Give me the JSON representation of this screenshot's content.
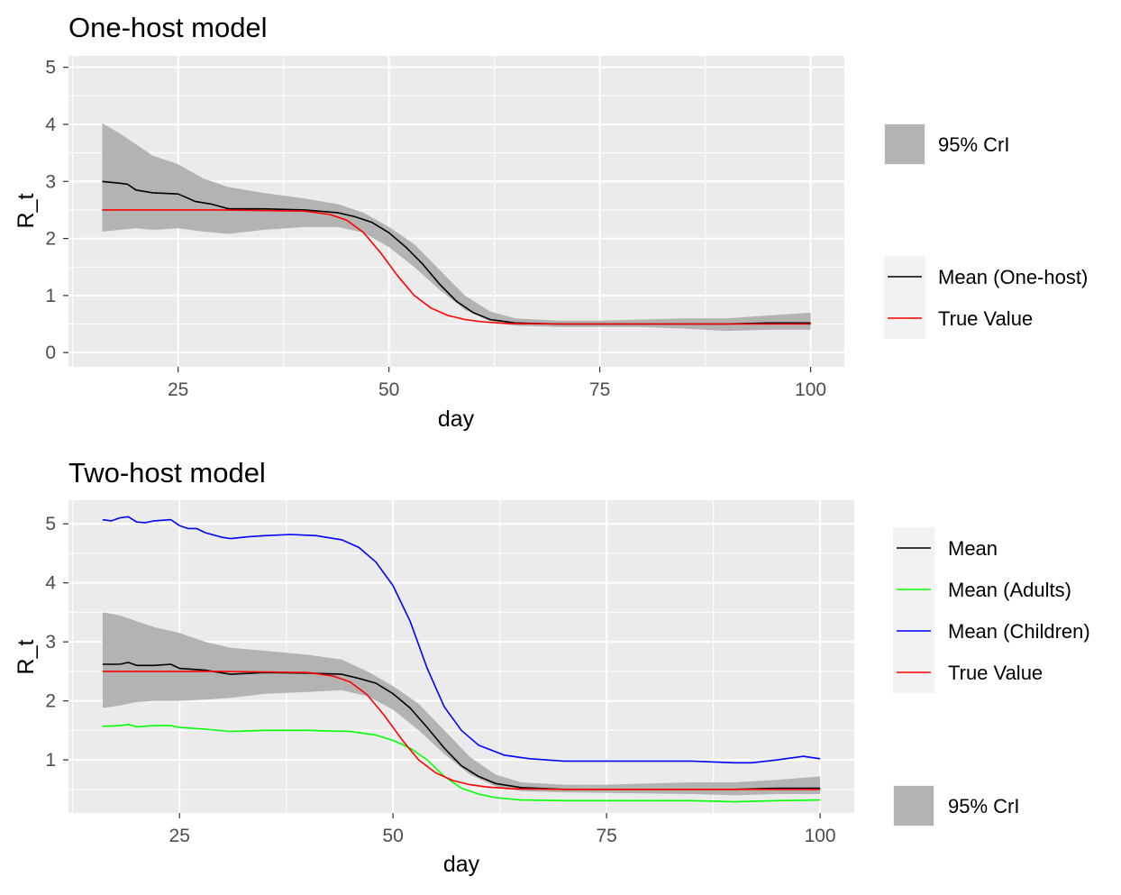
{
  "chart_data": [
    {
      "type": "line",
      "title": "One-host model",
      "xlabel": "day",
      "ylabel": "R_t",
      "xlim": [
        12,
        104
      ],
      "ylim": [
        -0.25,
        5.2
      ],
      "xticks": [
        25,
        50,
        75,
        100
      ],
      "yticks": [
        0,
        1,
        2,
        3,
        4,
        5
      ],
      "grid": true,
      "band": {
        "name": "95% CrI",
        "color": "#b3b3b3",
        "x": [
          16,
          18,
          20,
          22,
          25,
          28,
          31,
          35,
          40,
          44,
          47,
          50,
          53,
          56,
          59,
          62,
          65,
          70,
          75,
          80,
          85,
          90,
          95,
          100
        ],
        "lower": [
          2.12,
          2.15,
          2.18,
          2.15,
          2.18,
          2.12,
          2.08,
          2.15,
          2.2,
          2.2,
          2.1,
          1.85,
          1.5,
          1.1,
          0.75,
          0.55,
          0.47,
          0.45,
          0.45,
          0.45,
          0.42,
          0.38,
          0.4,
          0.4
        ],
        "upper": [
          4.02,
          3.85,
          3.65,
          3.45,
          3.3,
          3.05,
          2.9,
          2.8,
          2.7,
          2.6,
          2.45,
          2.2,
          1.9,
          1.45,
          1.0,
          0.72,
          0.6,
          0.56,
          0.56,
          0.58,
          0.6,
          0.6,
          0.65,
          0.7
        ]
      },
      "series": [
        {
          "name": "Mean (One-host)",
          "color": "#000000",
          "x": [
            16,
            18,
            19,
            20,
            22,
            25,
            27,
            29,
            31,
            35,
            40,
            44,
            46,
            48,
            50,
            52,
            54,
            56,
            58,
            60,
            62,
            65,
            70,
            75,
            80,
            85,
            90,
            95,
            100
          ],
          "y": [
            3.0,
            2.97,
            2.95,
            2.85,
            2.8,
            2.78,
            2.65,
            2.6,
            2.52,
            2.52,
            2.5,
            2.45,
            2.38,
            2.28,
            2.1,
            1.85,
            1.55,
            1.2,
            0.9,
            0.7,
            0.58,
            0.52,
            0.5,
            0.5,
            0.5,
            0.5,
            0.5,
            0.52,
            0.52
          ]
        },
        {
          "name": "True Value",
          "color": "#ff0000",
          "x": [
            16,
            30,
            40,
            43,
            45,
            47,
            49,
            51,
            53,
            55,
            57,
            59,
            61,
            64,
            70,
            80,
            90,
            100
          ],
          "y": [
            2.5,
            2.5,
            2.48,
            2.42,
            2.32,
            2.1,
            1.75,
            1.35,
            1.0,
            0.78,
            0.65,
            0.58,
            0.54,
            0.51,
            0.5,
            0.5,
            0.5,
            0.5
          ]
        }
      ],
      "legend": {
        "placement": "right",
        "band_label": "95% CrI",
        "line_labels": [
          "Mean (One-host)",
          "True Value"
        ]
      }
    },
    {
      "type": "line",
      "title": "Two-host model",
      "xlabel": "day",
      "ylabel": "R_t",
      "xlim": [
        12,
        104
      ],
      "ylim": [
        0.1,
        5.4
      ],
      "xticks": [
        25,
        50,
        75,
        100
      ],
      "yticks": [
        1,
        2,
        3,
        4,
        5
      ],
      "grid": true,
      "band": {
        "name": "95% CrI",
        "color": "#b3b3b3",
        "x": [
          16,
          18,
          20,
          22,
          25,
          28,
          31,
          35,
          40,
          44,
          47,
          50,
          53,
          56,
          59,
          62,
          65,
          70,
          75,
          80,
          85,
          90,
          95,
          100
        ],
        "lower": [
          1.88,
          1.92,
          1.98,
          2.0,
          2.0,
          2.02,
          2.05,
          2.12,
          2.15,
          2.18,
          2.08,
          1.85,
          1.5,
          1.1,
          0.75,
          0.55,
          0.47,
          0.45,
          0.44,
          0.43,
          0.42,
          0.4,
          0.42,
          0.42
        ],
        "upper": [
          3.5,
          3.45,
          3.35,
          3.25,
          3.15,
          3.0,
          2.9,
          2.85,
          2.78,
          2.7,
          2.5,
          2.25,
          1.95,
          1.5,
          1.05,
          0.75,
          0.62,
          0.58,
          0.58,
          0.6,
          0.62,
          0.62,
          0.66,
          0.72
        ]
      },
      "series": [
        {
          "name": "Mean",
          "color": "#000000",
          "x": [
            16,
            18,
            19,
            20,
            22,
            24,
            25,
            28,
            31,
            35,
            40,
            44,
            46,
            48,
            50,
            52,
            54,
            56,
            58,
            60,
            62,
            65,
            70,
            75,
            80,
            85,
            90,
            95,
            100
          ],
          "y": [
            2.62,
            2.62,
            2.65,
            2.6,
            2.6,
            2.62,
            2.55,
            2.52,
            2.45,
            2.48,
            2.47,
            2.45,
            2.38,
            2.3,
            2.12,
            1.88,
            1.55,
            1.2,
            0.9,
            0.72,
            0.6,
            0.53,
            0.5,
            0.5,
            0.5,
            0.5,
            0.5,
            0.52,
            0.52
          ]
        },
        {
          "name": "Mean (Adults)",
          "color": "#00ff00",
          "x": [
            16,
            18,
            19,
            20,
            22,
            24,
            25,
            28,
            31,
            35,
            40,
            45,
            48,
            50,
            52,
            54,
            56,
            58,
            60,
            62,
            65,
            70,
            75,
            80,
            85,
            90,
            95,
            100
          ],
          "y": [
            1.57,
            1.58,
            1.6,
            1.56,
            1.58,
            1.58,
            1.55,
            1.52,
            1.48,
            1.5,
            1.5,
            1.48,
            1.42,
            1.33,
            1.2,
            1.0,
            0.72,
            0.52,
            0.42,
            0.36,
            0.32,
            0.31,
            0.31,
            0.31,
            0.31,
            0.29,
            0.31,
            0.32
          ]
        },
        {
          "name": "Mean (Children)",
          "color": "#0000ff",
          "x": [
            16,
            17,
            18,
            19,
            20,
            21,
            22,
            24,
            25,
            26,
            27,
            28,
            30,
            31,
            33,
            35,
            38,
            41,
            44,
            46,
            48,
            50,
            52,
            54,
            56,
            58,
            60,
            63,
            66,
            70,
            75,
            80,
            85,
            90,
            92,
            95,
            98,
            100
          ],
          "y": [
            5.07,
            5.05,
            5.1,
            5.12,
            5.03,
            5.02,
            5.05,
            5.07,
            4.97,
            4.92,
            4.92,
            4.85,
            4.77,
            4.75,
            4.78,
            4.8,
            4.82,
            4.8,
            4.73,
            4.6,
            4.35,
            3.95,
            3.35,
            2.55,
            1.9,
            1.5,
            1.25,
            1.08,
            1.02,
            0.98,
            0.98,
            0.98,
            0.98,
            0.95,
            0.95,
            1.0,
            1.06,
            1.02
          ]
        },
        {
          "name": "True Value",
          "color": "#ff0000",
          "x": [
            16,
            30,
            40,
            43,
            45,
            47,
            49,
            51,
            53,
            55,
            57,
            59,
            61,
            64,
            70,
            80,
            90,
            100
          ],
          "y": [
            2.5,
            2.5,
            2.48,
            2.42,
            2.32,
            2.1,
            1.75,
            1.35,
            1.0,
            0.78,
            0.65,
            0.58,
            0.54,
            0.51,
            0.5,
            0.5,
            0.5,
            0.5
          ]
        }
      ],
      "legend": {
        "placement": "right",
        "band_label": "95% CrI",
        "line_labels": [
          "Mean",
          "Mean (Adults)",
          "Mean (Children)",
          "True Value"
        ]
      }
    }
  ]
}
